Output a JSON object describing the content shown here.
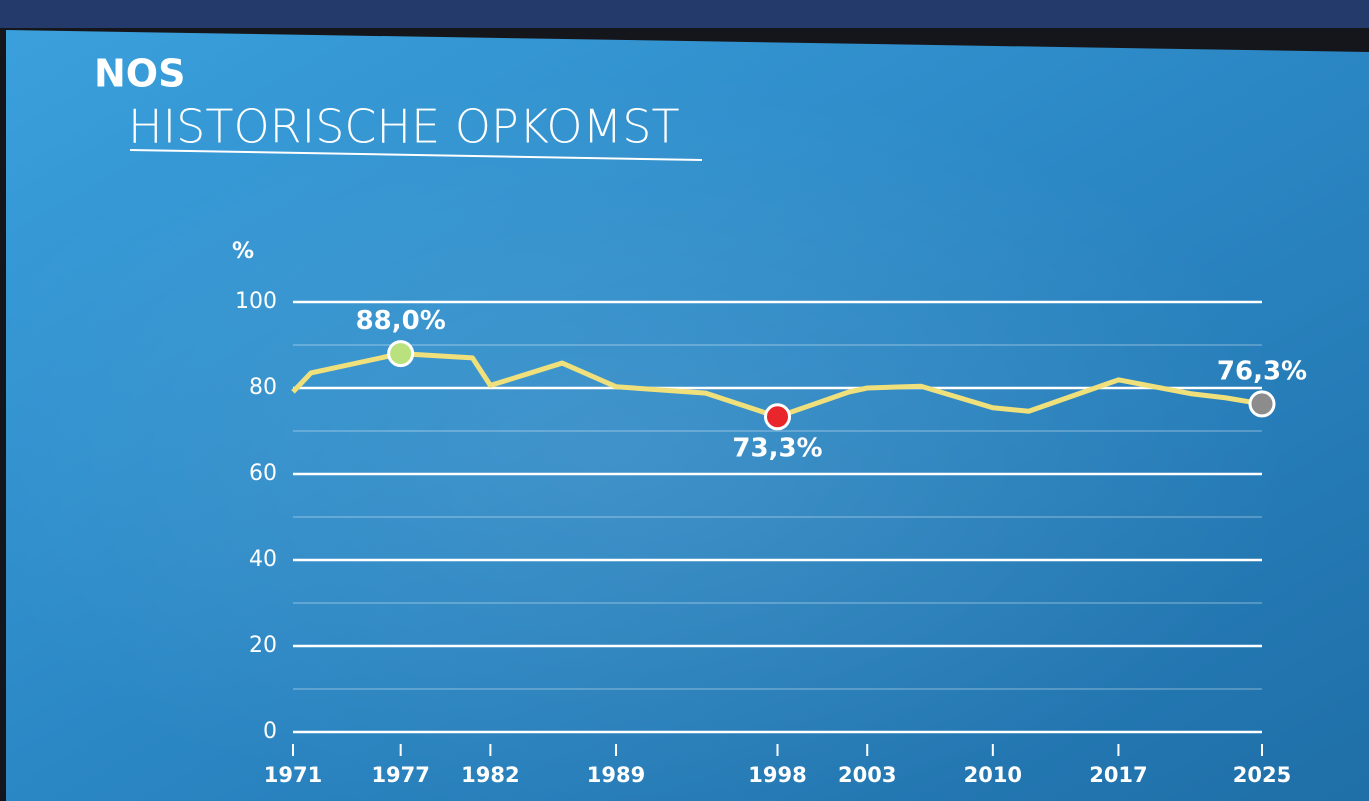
{
  "chart_data": {
    "type": "line",
    "logo": "NOS",
    "title": "HISTORISCHE OPKOMST",
    "y_label": "%",
    "x": [
      1971,
      1972,
      1977,
      1981,
      1982,
      1986,
      1989,
      1994,
      1998,
      2002,
      2003,
      2006,
      2010,
      2012,
      2017,
      2021,
      2023,
      2025
    ],
    "series": [
      {
        "color": "#efe07c",
        "values": [
          79.1,
          83.5,
          88.0,
          87.0,
          80.6,
          85.8,
          80.3,
          78.8,
          73.3,
          79.1,
          80.0,
          80.4,
          75.4,
          74.6,
          81.9,
          78.7,
          77.7,
          76.3
        ],
        "value_labels": [
          null,
          null,
          "88,0%",
          null,
          null,
          null,
          null,
          null,
          "73,3%",
          null,
          null,
          null,
          null,
          null,
          null,
          null,
          null,
          "76,3%"
        ],
        "value_label_positions": [
          null,
          null,
          "above",
          null,
          null,
          null,
          null,
          null,
          "below",
          null,
          null,
          null,
          null,
          null,
          null,
          null,
          null,
          "above"
        ],
        "marker_colors": [
          null,
          null,
          "#b9e27e",
          null,
          null,
          null,
          null,
          null,
          "#e8262b",
          null,
          null,
          null,
          null,
          null,
          null,
          null,
          null,
          "#8c8c8c"
        ]
      }
    ],
    "xlim": [
      1971,
      2025
    ],
    "xticks": [
      1971,
      1977,
      1982,
      1989,
      1998,
      2003,
      2010,
      2017,
      2025
    ],
    "ylim": [
      0,
      100
    ],
    "yticks": [
      0,
      20,
      40,
      60,
      80,
      100
    ],
    "minor_yticks": [
      10,
      30,
      50,
      70,
      90
    ],
    "grid": true
  }
}
